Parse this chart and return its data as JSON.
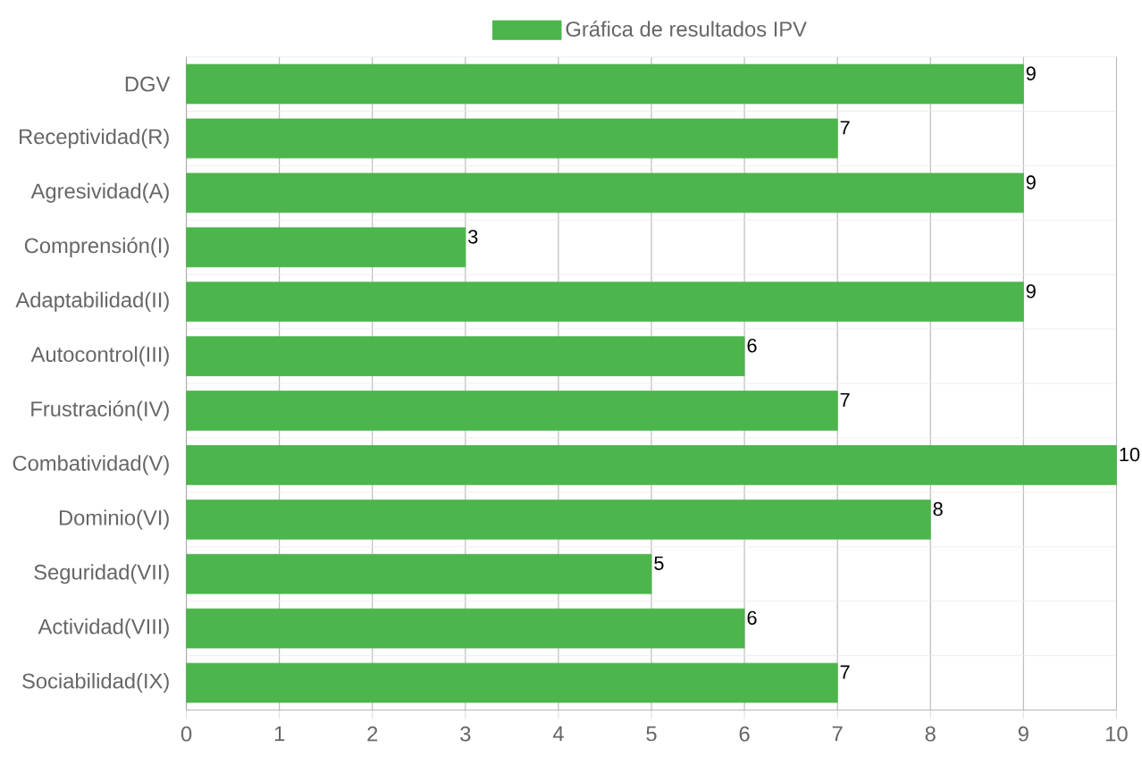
{
  "chart_data": {
    "type": "bar",
    "orientation": "horizontal",
    "categories": [
      "DGV",
      "Receptividad(R)",
      "Agresividad(A)",
      "Comprensión(I)",
      "Adaptabilidad(II)",
      "Autocontrol(III)",
      "Frustración(IV)",
      "Combatividad(V)",
      "Dominio(VI)",
      "Seguridad(VII)",
      "Actividad(VIII)",
      "Sociabilidad(IX)"
    ],
    "series": [
      {
        "name": "Gráfica de resultados IPV",
        "color": "#4cb54c",
        "values": [
          9,
          7,
          9,
          3,
          9,
          6,
          7,
          10,
          8,
          5,
          6,
          7
        ]
      }
    ],
    "xlim": [
      0,
      10
    ],
    "xticks": [
      0,
      1,
      2,
      3,
      4,
      5,
      6,
      7,
      8,
      9,
      10
    ],
    "grid": true,
    "legend": "top",
    "data_labels": true
  }
}
